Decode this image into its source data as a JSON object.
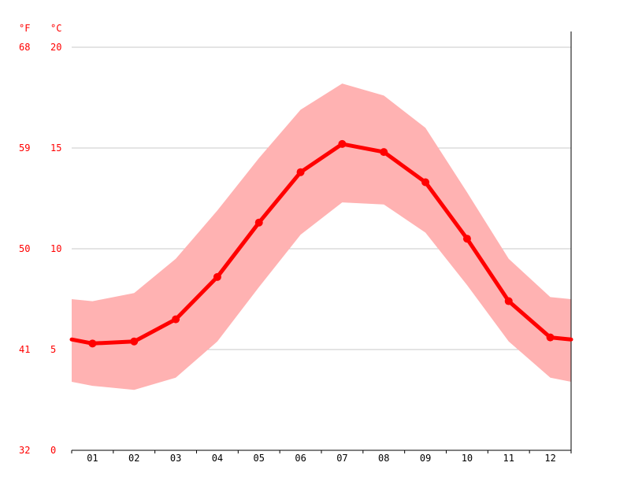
{
  "chart_data": {
    "type": "line",
    "title": "",
    "xlabel": "",
    "ylabel": "",
    "unit_left": "°F",
    "unit_right": "°C",
    "categories": [
      "01",
      "02",
      "03",
      "04",
      "05",
      "06",
      "07",
      "08",
      "09",
      "10",
      "11",
      "12"
    ],
    "series": [
      {
        "values": [
          5.3,
          5.4,
          6.5,
          8.6,
          11.3,
          13.8,
          15.2,
          14.8,
          13.3,
          10.5,
          7.4,
          5.6
        ],
        "band_low": [
          3.2,
          3.0,
          3.6,
          5.4,
          8.1,
          10.7,
          12.3,
          12.2,
          10.8,
          8.2,
          5.4,
          3.6
        ],
        "band_high": [
          7.4,
          7.8,
          9.5,
          11.9,
          14.5,
          16.9,
          18.2,
          17.6,
          16.0,
          12.8,
          9.5,
          7.6
        ],
        "color": "#ff0000",
        "band_color": "#ffb2b2"
      }
    ],
    "edge_values": {
      "start": 5.5,
      "end": 5.5,
      "start_low": 3.4,
      "end_low": 3.4,
      "start_high": 7.5,
      "end_high": 7.5
    },
    "y_ticks": [
      {
        "c": "0",
        "f": "32"
      },
      {
        "c": "5",
        "f": "41"
      },
      {
        "c": "10",
        "f": "50"
      },
      {
        "c": "15",
        "f": "59"
      },
      {
        "c": "20",
        "f": "68"
      }
    ],
    "ylim": [
      0,
      20
    ],
    "grid": true
  }
}
